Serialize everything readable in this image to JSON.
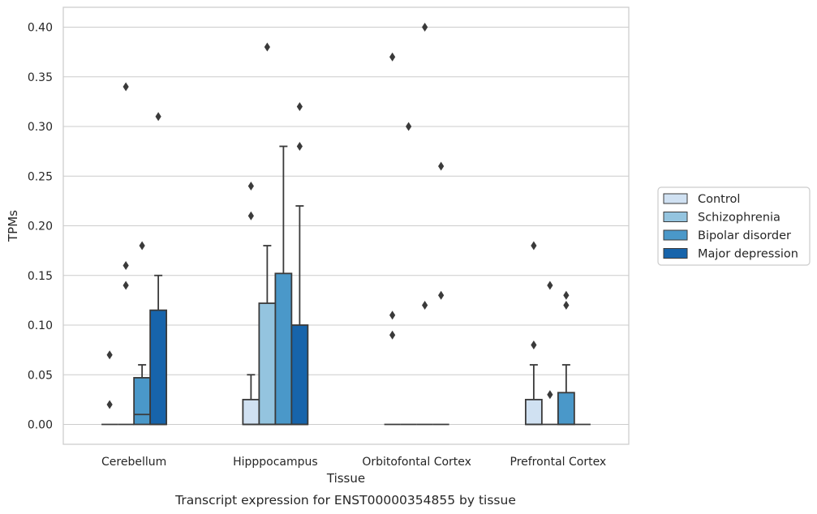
{
  "chart_data": {
    "type": "box",
    "title": "",
    "caption": "Transcript expression for ENST00000354855 by tissue",
    "xlabel": "Tissue",
    "ylabel": "TPMs",
    "ylim": [
      -0.02,
      0.42
    ],
    "yticks": [
      "0.00",
      "0.05",
      "0.10",
      "0.15",
      "0.20",
      "0.25",
      "0.30",
      "0.35",
      "0.40"
    ],
    "ytick_values": [
      0,
      0.05,
      0.1,
      0.15,
      0.2,
      0.25,
      0.3,
      0.35,
      0.4
    ],
    "grid": "horizontal",
    "legend_position": "right",
    "categories": [
      "Cerebellum",
      "Hipppocampus",
      "Orbitofontal Cortex",
      "Prefrontal Cortex"
    ],
    "series": [
      {
        "name": "Control",
        "color": "#d0e1f2",
        "boxes": [
          {
            "q1": 0,
            "median": 0,
            "q3": 0,
            "whisker_low": 0,
            "whisker_high": 0,
            "outliers": [
              0.02,
              0.07
            ]
          },
          {
            "q1": 0,
            "median": 0,
            "q3": 0.025,
            "whisker_low": 0,
            "whisker_high": 0.05,
            "outliers": [
              0.21,
              0.24
            ]
          },
          {
            "q1": 0,
            "median": 0,
            "q3": 0,
            "whisker_low": 0,
            "whisker_high": 0,
            "outliers": [
              0.09,
              0.11,
              0.37
            ]
          },
          {
            "q1": 0,
            "median": 0,
            "q3": 0.025,
            "whisker_low": 0,
            "whisker_high": 0.06,
            "outliers": [
              0.08,
              0.18
            ]
          }
        ]
      },
      {
        "name": "Schizophrenia",
        "color": "#94c4df",
        "boxes": [
          {
            "q1": 0,
            "median": 0,
            "q3": 0,
            "whisker_low": 0,
            "whisker_high": 0,
            "outliers": [
              0.14,
              0.16,
              0.34
            ]
          },
          {
            "q1": 0,
            "median": 0,
            "q3": 0.122,
            "whisker_low": 0,
            "whisker_high": 0.18,
            "outliers": [
              0.38
            ]
          },
          {
            "q1": 0,
            "median": 0,
            "q3": 0,
            "whisker_low": 0,
            "whisker_high": 0,
            "outliers": [
              0.3
            ]
          },
          {
            "q1": 0,
            "median": 0,
            "q3": 0,
            "whisker_low": 0,
            "whisker_high": 0,
            "outliers": [
              0.03,
              0.14
            ]
          }
        ]
      },
      {
        "name": "Bipolar disorder",
        "color": "#4a98c9",
        "boxes": [
          {
            "q1": 0,
            "median": 0.01,
            "q3": 0.047,
            "whisker_low": 0,
            "whisker_high": 0.06,
            "outliers": [
              0.18
            ]
          },
          {
            "q1": 0,
            "median": 0,
            "q3": 0.152,
            "whisker_low": 0,
            "whisker_high": 0.28,
            "outliers": []
          },
          {
            "q1": 0,
            "median": 0,
            "q3": 0,
            "whisker_low": 0,
            "whisker_high": 0,
            "outliers": [
              0.12,
              0.4
            ]
          },
          {
            "q1": 0,
            "median": 0,
            "q3": 0.032,
            "whisker_low": 0,
            "whisker_high": 0.06,
            "outliers": [
              0.12,
              0.13
            ]
          }
        ]
      },
      {
        "name": "Major depression",
        "color": "#1764ab",
        "boxes": [
          {
            "q1": 0,
            "median": 0,
            "q3": 0.115,
            "whisker_low": 0,
            "whisker_high": 0.15,
            "outliers": [
              0.31
            ]
          },
          {
            "q1": 0,
            "median": 0,
            "q3": 0.1,
            "whisker_low": 0,
            "whisker_high": 0.22,
            "outliers": [
              0.28,
              0.32
            ]
          },
          {
            "q1": 0,
            "median": 0,
            "q3": 0,
            "whisker_low": 0,
            "whisker_high": 0,
            "outliers": [
              0.13,
              0.26
            ]
          },
          {
            "q1": 0,
            "median": 0,
            "q3": 0,
            "whisker_low": 0,
            "whisker_high": 0,
            "outliers": []
          }
        ]
      }
    ]
  }
}
